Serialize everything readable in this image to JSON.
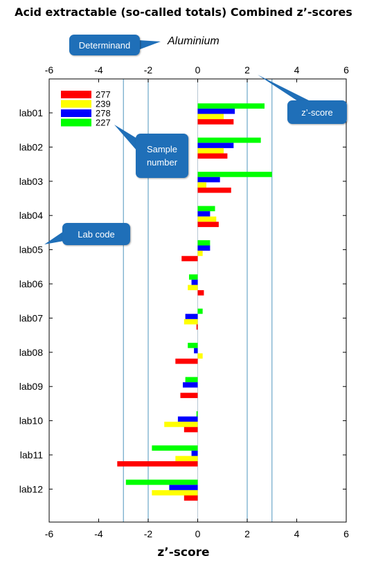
{
  "title": "Acid extractable (so-called totals) Combined z’-scores",
  "determinand": {
    "label": "Determinand",
    "value": "Aluminium"
  },
  "callouts": {
    "zscore": "z’-score",
    "sample_number": "Sample number",
    "lab_code": "Lab code"
  },
  "colors": {
    "277": "#ff0000",
    "239": "#ffff00",
    "278": "#0000ff",
    "227": "#00ff00",
    "callout": "#1f6fb8",
    "ref_lines": "#6ca6c9"
  },
  "chart_data": {
    "type": "bar",
    "orientation": "horizontal",
    "title": "Acid extractable (so-called totals) Combined z’-scores",
    "xlabel": "z’-score",
    "ylabel": "",
    "xlim": [
      -6,
      6
    ],
    "xticks": [
      "-6",
      "-4",
      "-2",
      "0",
      "2",
      "4",
      "6"
    ],
    "reference_lines": [
      -3,
      -2,
      2,
      3
    ],
    "legend_position": "top-left",
    "categories": [
      "lab01",
      "lab02",
      "lab03",
      "lab04",
      "lab05",
      "lab06",
      "lab07",
      "lab08",
      "lab09",
      "lab10",
      "lab11",
      "lab12"
    ],
    "series": [
      {
        "name": "277",
        "color": "#ff0000",
        "values": [
          1.45,
          1.2,
          1.35,
          0.85,
          -0.65,
          0.25,
          -0.05,
          -0.9,
          -0.7,
          -0.55,
          -3.25,
          -0.55
        ]
      },
      {
        "name": "239",
        "color": "#ffff00",
        "values": [
          1.05,
          1.05,
          0.35,
          0.75,
          0.2,
          -0.4,
          -0.55,
          0.2,
          0.0,
          -1.35,
          -0.9,
          -1.85
        ]
      },
      {
        "name": "278",
        "color": "#0000ff",
        "values": [
          1.5,
          1.45,
          0.9,
          0.5,
          0.5,
          -0.25,
          -0.5,
          -0.15,
          -0.6,
          -0.8,
          -0.25,
          -1.15
        ]
      },
      {
        "name": "227",
        "color": "#00ff00",
        "values": [
          2.7,
          2.55,
          3.0,
          0.7,
          0.5,
          -0.35,
          0.2,
          -0.4,
          -0.5,
          -0.05,
          -1.85,
          -2.9
        ]
      }
    ]
  }
}
